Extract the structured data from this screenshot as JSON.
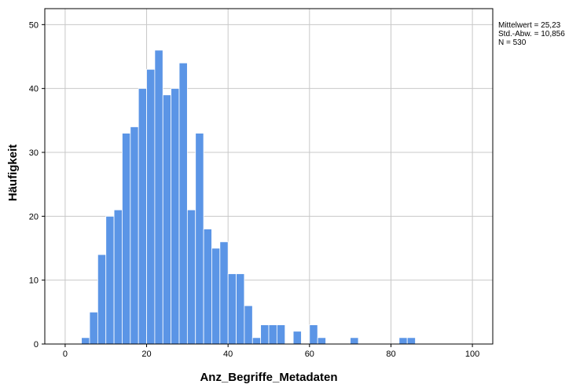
{
  "chart_data": {
    "type": "bar",
    "subtype": "histogram",
    "xlabel": "Anz_Begriffe_Metadaten",
    "ylabel": "Häufigkeit",
    "xlim": [
      -5,
      105
    ],
    "ylim": [
      0,
      52.5
    ],
    "x_ticks": [
      0,
      20,
      40,
      60,
      80,
      100
    ],
    "y_ticks": [
      0,
      10,
      20,
      30,
      40,
      50
    ],
    "grid": true,
    "bin_width": 2,
    "bar_color": "#5b95e6",
    "bins": [
      {
        "x": 5,
        "count": 1
      },
      {
        "x": 7,
        "count": 5
      },
      {
        "x": 9,
        "count": 14
      },
      {
        "x": 11,
        "count": 20
      },
      {
        "x": 13,
        "count": 21
      },
      {
        "x": 15,
        "count": 33
      },
      {
        "x": 17,
        "count": 34
      },
      {
        "x": 19,
        "count": 40
      },
      {
        "x": 21,
        "count": 43
      },
      {
        "x": 23,
        "count": 46
      },
      {
        "x": 25,
        "count": 39
      },
      {
        "x": 27,
        "count": 40
      },
      {
        "x": 29,
        "count": 44
      },
      {
        "x": 31,
        "count": 21
      },
      {
        "x": 33,
        "count": 33
      },
      {
        "x": 35,
        "count": 18
      },
      {
        "x": 37,
        "count": 15
      },
      {
        "x": 39,
        "count": 16
      },
      {
        "x": 41,
        "count": 11
      },
      {
        "x": 43,
        "count": 11
      },
      {
        "x": 45,
        "count": 6
      },
      {
        "x": 47,
        "count": 1
      },
      {
        "x": 49,
        "count": 3
      },
      {
        "x": 51,
        "count": 3
      },
      {
        "x": 53,
        "count": 3
      },
      {
        "x": 57,
        "count": 2
      },
      {
        "x": 61,
        "count": 3
      },
      {
        "x": 63,
        "count": 1
      },
      {
        "x": 71,
        "count": 1
      },
      {
        "x": 83,
        "count": 1
      },
      {
        "x": 85,
        "count": 1
      }
    ],
    "stats": {
      "mean": "Mittelwert = 25,23",
      "std": "Std.-Abw. = 10,856",
      "n": "N = 530"
    }
  }
}
